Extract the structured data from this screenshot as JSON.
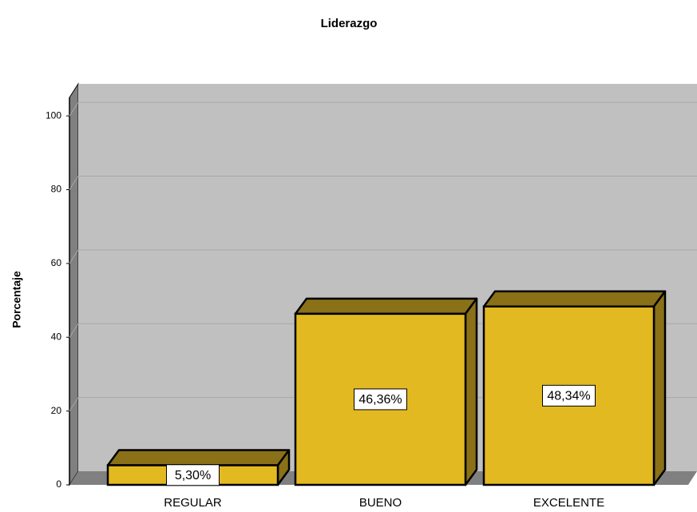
{
  "chart_data": {
    "type": "bar3d",
    "title": "Liderazgo",
    "y_label": "Porcentaje",
    "categories": [
      "REGULAR",
      "BUENO",
      "EXCELENTE"
    ],
    "values": [
      5.3,
      46.36,
      48.34
    ],
    "value_labels": [
      "5,30%",
      "46,36%",
      "48,34%"
    ],
    "color": "#e3b921",
    "ylim": [
      0,
      105
    ],
    "yticks": [
      0,
      20,
      40,
      60,
      80,
      100
    ],
    "grid": true
  }
}
